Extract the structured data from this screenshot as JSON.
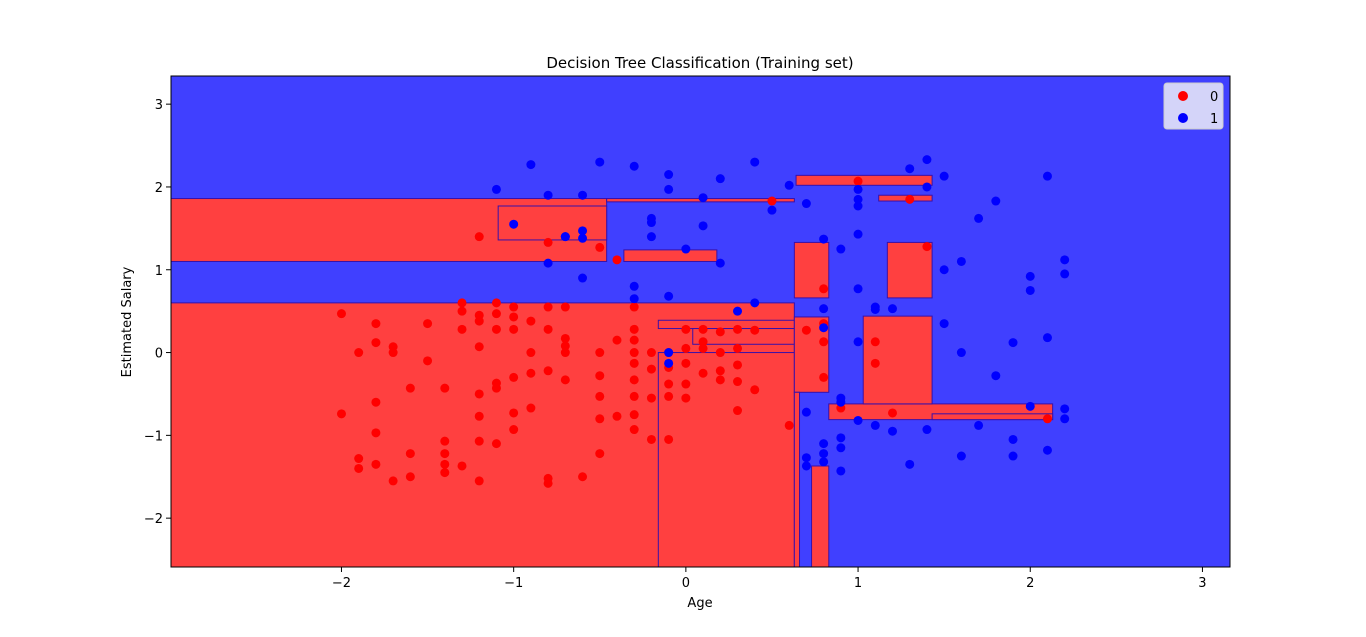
{
  "chart_data": {
    "type": "scatter",
    "title": "Decision Tree Classification (Training set)",
    "xlabel": "Age",
    "ylabel": "Estimated Salary",
    "xlim": [
      -2.99,
      3.16
    ],
    "ylim": [
      -2.59,
      3.34
    ],
    "xticks": [
      -2,
      -1,
      0,
      1,
      2,
      3
    ],
    "yticks": [
      -2,
      -1,
      0,
      1,
      2,
      3
    ],
    "xtick_labels": [
      "−2",
      "−1",
      "0",
      "1",
      "2",
      "3"
    ],
    "ytick_labels": [
      "−2",
      "−1",
      "0",
      "1",
      "2",
      "3"
    ],
    "legend_position": "top-right",
    "grid": false,
    "background_class": "1",
    "class_colors": {
      "0": "#ff4040",
      "1": "#4040ff"
    },
    "point_colors": {
      "0": "#ff0000",
      "1": "#0000ff"
    },
    "region_colors": {
      "0": "#ff4040",
      "1": "#4040ff"
    },
    "decision_regions_class0": [
      {
        "x0": -2.99,
        "x1": -0.46,
        "y0": 1.1,
        "y1": 1.86
      },
      {
        "x0": -2.99,
        "x1": 0.63,
        "y0": -2.59,
        "y1": 0.6
      },
      {
        "x0": -0.46,
        "x1": 0.63,
        "y0": 1.82,
        "y1": 1.86
      },
      {
        "x0": -1.09,
        "x1": -0.46,
        "y0": 1.36,
        "y1": 1.77
      },
      {
        "x0": 0.64,
        "x1": 1.43,
        "y0": 2.02,
        "y1": 2.14
      },
      {
        "x0": 1.12,
        "x1": 1.43,
        "y0": 1.83,
        "y1": 1.9
      },
      {
        "x0": -0.36,
        "x1": 0.18,
        "y0": 1.1,
        "y1": 1.24
      },
      {
        "x0": 0.63,
        "x1": 0.83,
        "y0": 0.66,
        "y1": 1.33
      },
      {
        "x0": 1.17,
        "x1": 1.43,
        "y0": 0.66,
        "y1": 1.33
      },
      {
        "x0": -0.16,
        "x1": 0.63,
        "y0": 0.29,
        "y1": 0.39
      },
      {
        "x0": 0.04,
        "x1": 0.63,
        "y0": 0.1,
        "y1": 0.29
      },
      {
        "x0": -0.16,
        "x1": 0.63,
        "y0": -2.59,
        "y1": 0.0
      },
      {
        "x0": 0.73,
        "x1": 0.83,
        "y0": 0.26,
        "y1": 0.33
      },
      {
        "x0": 0.63,
        "x1": 0.83,
        "y0": -0.48,
        "y1": 0.43
      },
      {
        "x0": 0.63,
        "x1": 0.66,
        "y0": -2.59,
        "y1": -0.48
      },
      {
        "x0": 0.73,
        "x1": 0.83,
        "y0": -2.59,
        "y1": -1.37
      },
      {
        "x0": 0.83,
        "x1": 2.13,
        "y0": -0.81,
        "y1": -0.62
      },
      {
        "x0": 1.03,
        "x1": 1.43,
        "y0": -0.62,
        "y1": 0.44
      },
      {
        "x0": 1.43,
        "x1": 2.13,
        "y0": -0.81,
        "y1": -0.74
      }
    ],
    "series": [
      {
        "name": "0",
        "x": [
          -2.0,
          -2.0,
          -1.9,
          -1.9,
          -1.9,
          -1.8,
          -1.8,
          -1.8,
          -1.8,
          -1.8,
          -1.7,
          -1.7,
          -1.7,
          -1.6,
          -1.6,
          -1.6,
          -1.5,
          -1.5,
          -1.4,
          -1.4,
          -1.4,
          -1.4,
          -1.4,
          -1.3,
          -1.3,
          -1.3,
          -1.3,
          -1.2,
          -1.2,
          -1.2,
          -1.2,
          -1.2,
          -1.2,
          -1.2,
          -1.1,
          -1.1,
          -1.1,
          -1.1,
          -1.1,
          -1.1,
          -1.0,
          -1.0,
          -1.0,
          -1.0,
          -1.0,
          -1.0,
          -0.9,
          -0.9,
          -0.9,
          -0.9,
          -0.8,
          -0.8,
          -0.8,
          -0.8,
          -0.8,
          -0.7,
          -0.7,
          -0.7,
          -0.7,
          -0.7,
          -0.6,
          -0.5,
          -0.5,
          -0.5,
          -0.5,
          -0.5,
          -0.4,
          -0.4,
          -0.3,
          -0.3,
          -0.3,
          -0.3,
          -0.3,
          -0.3,
          -0.3,
          -0.3,
          -0.3,
          -0.2,
          -0.2,
          -0.2,
          -0.2,
          -0.1,
          -0.1,
          -0.1,
          -0.1,
          -0.1,
          0.0,
          0.0,
          0.0,
          0.0,
          0.0,
          0.1,
          0.1,
          0.1,
          0.1,
          0.2,
          0.2,
          0.2,
          0.2,
          0.3,
          0.3,
          0.3,
          0.3,
          0.3,
          0.4,
          0.4,
          0.5,
          0.6,
          0.7,
          0.8,
          0.8,
          0.8,
          0.8,
          0.9,
          1.0,
          1.1,
          1.1,
          1.2,
          1.3,
          1.4,
          2.1,
          -1.2,
          -0.8,
          -0.5,
          -0.4
        ],
        "y": [
          0.47,
          -0.74,
          -1.28,
          -1.4,
          0.0,
          0.35,
          0.12,
          -0.6,
          -0.97,
          -1.35,
          0.07,
          0.0,
          -1.55,
          -0.43,
          -1.22,
          -1.5,
          0.35,
          -0.1,
          -0.43,
          -1.07,
          -1.22,
          -1.35,
          -1.45,
          0.6,
          0.5,
          0.28,
          -1.37,
          0.45,
          0.38,
          0.07,
          -0.5,
          -0.77,
          -1.07,
          -1.55,
          0.6,
          0.47,
          0.28,
          -0.37,
          -0.43,
          -1.1,
          0.55,
          0.43,
          0.28,
          -0.3,
          -0.73,
          -0.93,
          0.38,
          0.0,
          -0.25,
          -0.67,
          0.55,
          0.28,
          -0.22,
          -1.52,
          -1.58,
          0.55,
          0.17,
          0.08,
          0.0,
          -0.33,
          -1.5,
          0.0,
          -0.28,
          -0.53,
          -0.8,
          -1.22,
          0.15,
          -0.77,
          0.55,
          0.28,
          0.15,
          0.0,
          -0.13,
          -0.33,
          -0.53,
          -0.75,
          -0.93,
          0.0,
          -0.2,
          -0.55,
          -1.05,
          0.0,
          -0.18,
          -0.38,
          -0.53,
          -1.05,
          0.28,
          0.05,
          -0.13,
          -0.38,
          -0.55,
          0.28,
          0.13,
          0.05,
          -0.25,
          0.25,
          0.0,
          -0.22,
          -0.33,
          0.28,
          0.05,
          -0.15,
          -0.35,
          -0.7,
          0.27,
          -0.45,
          1.83,
          -0.88,
          0.27,
          0.77,
          0.35,
          0.13,
          -0.3,
          -0.67,
          2.07,
          0.13,
          -0.13,
          -0.73,
          1.85,
          1.28,
          -0.8,
          1.4,
          1.33,
          1.27,
          1.12
        ],
        "color": "#ff0000"
      },
      {
        "name": "1",
        "x": [
          -1.1,
          -1.0,
          -0.9,
          -0.8,
          -0.7,
          -0.6,
          -0.6,
          -0.6,
          -0.5,
          -0.3,
          -0.3,
          -0.3,
          -0.2,
          -0.2,
          -0.2,
          -0.1,
          -0.1,
          -0.1,
          -0.1,
          -0.1,
          0.0,
          0.1,
          0.1,
          0.2,
          0.2,
          0.3,
          0.4,
          0.4,
          0.5,
          0.6,
          0.7,
          0.7,
          0.7,
          0.7,
          0.8,
          0.8,
          0.8,
          0.8,
          0.8,
          0.9,
          0.9,
          0.9,
          0.9,
          0.9,
          0.9,
          1.0,
          1.0,
          1.0,
          1.0,
          1.0,
          1.0,
          1.0,
          1.1,
          1.1,
          1.1,
          1.2,
          1.2,
          1.3,
          1.3,
          1.4,
          1.4,
          1.4,
          1.5,
          1.5,
          1.5,
          1.6,
          1.6,
          1.6,
          1.7,
          1.7,
          1.8,
          1.8,
          1.9,
          1.9,
          1.9,
          2.0,
          2.0,
          2.0,
          2.1,
          2.1,
          2.2,
          2.2,
          2.2,
          2.2,
          2.1,
          -0.8,
          -0.7,
          -0.6,
          0.8
        ],
        "y": [
          1.97,
          1.55,
          2.27,
          1.9,
          1.4,
          1.9,
          1.47,
          0.9,
          2.3,
          2.25,
          0.8,
          0.65,
          1.62,
          1.57,
          1.4,
          2.15,
          1.97,
          0.68,
          0.0,
          -0.13,
          1.25,
          1.87,
          1.53,
          2.1,
          1.08,
          0.5,
          2.3,
          0.6,
          1.72,
          2.02,
          1.8,
          -0.72,
          -1.27,
          -1.37,
          0.53,
          0.3,
          -1.1,
          -1.22,
          -1.32,
          1.25,
          -0.55,
          -0.6,
          -1.03,
          -1.15,
          -1.43,
          1.97,
          1.85,
          1.77,
          1.43,
          0.77,
          0.13,
          -0.82,
          0.55,
          0.52,
          -0.88,
          0.53,
          -0.95,
          2.22,
          -1.35,
          2.33,
          2.0,
          -0.93,
          2.13,
          0.35,
          1.0,
          1.1,
          0.0,
          -1.25,
          1.62,
          -0.88,
          1.83,
          -0.28,
          0.12,
          -1.05,
          -1.25,
          0.92,
          0.75,
          -0.65,
          2.13,
          -1.18,
          1.12,
          0.95,
          -0.68,
          -0.8,
          0.18,
          1.08,
          1.4,
          1.38,
          1.37
        ],
        "color": "#0000ff"
      }
    ]
  }
}
